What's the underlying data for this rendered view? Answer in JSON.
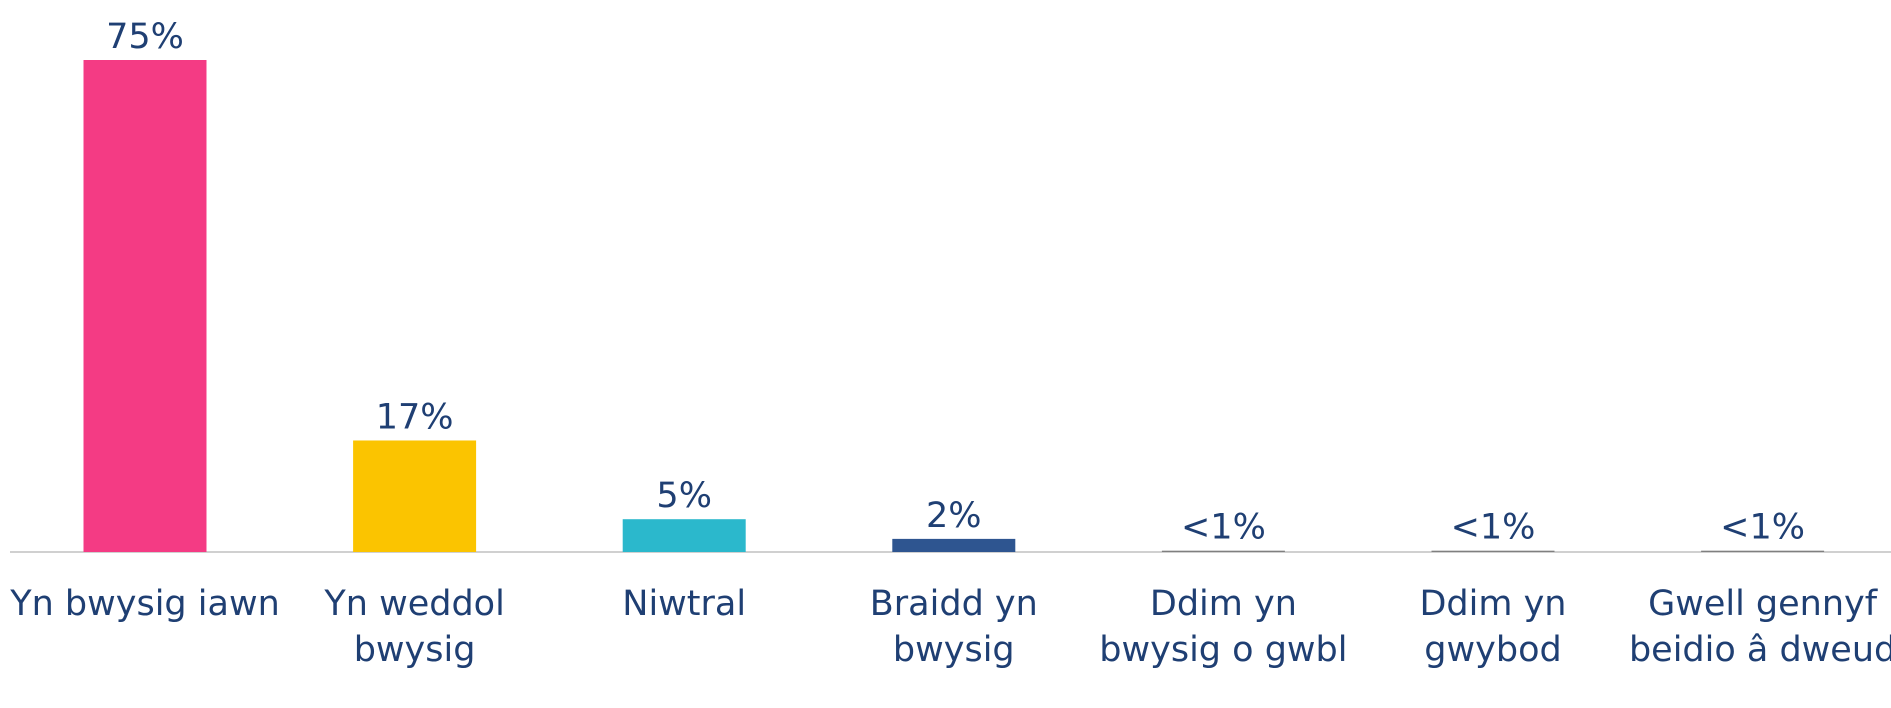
{
  "chart_data": {
    "type": "bar",
    "categories": [
      "Yn bwysig iawn",
      "Yn weddol bwysig",
      "Niwtral",
      "Braidd yn bwysig",
      "Ddim yn bwysig o gwbl",
      "Ddim yn gwybod",
      "Gwell gennyf beidio â dweud"
    ],
    "values": [
      75,
      17,
      5,
      2,
      0.2,
      0.2,
      0.2
    ],
    "value_labels": [
      "75%",
      "17%",
      "5%",
      "2%",
      "<1%",
      "<1%",
      "<1%"
    ],
    "colors": [
      "#f43b84",
      "#fbc400",
      "#2bb8cc",
      "#2e5590",
      "#7f7f7f",
      "#7f7f7f",
      "#7f7f7f"
    ]
  }
}
